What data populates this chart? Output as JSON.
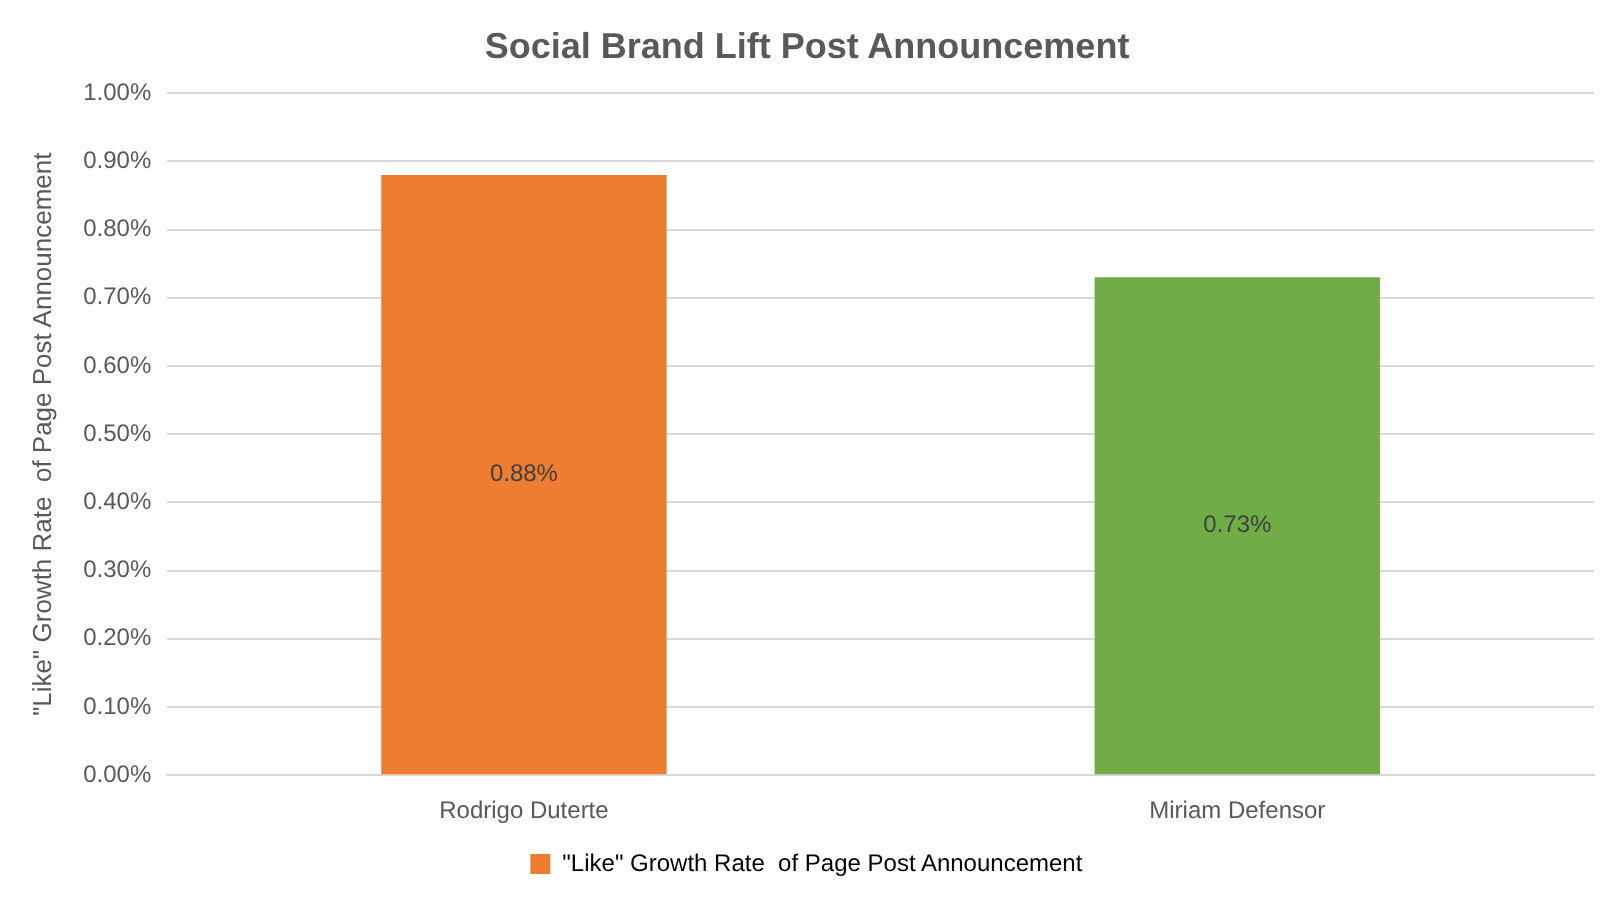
{
  "chart_data": {
    "type": "bar",
    "title": "Social Brand Lift Post Announcement",
    "ylabel": "\"Like\" Growth Rate  of Page Post Announcement",
    "categories": [
      "Rodrigo Duterte",
      "Miriam Defensor"
    ],
    "series": [
      {
        "name": "\"Like\" Growth Rate  of Page Post Announcement",
        "color": "#ed7d31",
        "colors": [
          "#ed7d31",
          "#70ad47"
        ],
        "values": [
          0.88,
          0.73
        ],
        "value_labels": [
          "0.88%",
          "0.73%"
        ]
      }
    ],
    "ylim": [
      0,
      1
    ],
    "yticks": [
      {
        "value": 0,
        "label": "0.00%"
      },
      {
        "value": 0.1,
        "label": "0.10%"
      },
      {
        "value": 0.2,
        "label": "0.20%"
      },
      {
        "value": 0.3,
        "label": "0.30%"
      },
      {
        "value": 0.4,
        "label": "0.40%"
      },
      {
        "value": 0.5,
        "label": "0.50%"
      },
      {
        "value": 0.6,
        "label": "0.60%"
      },
      {
        "value": 0.7,
        "label": "0.70%"
      },
      {
        "value": 0.8,
        "label": "0.80%"
      },
      {
        "value": 0.9,
        "label": "0.90%"
      },
      {
        "value": 1,
        "label": "1.00%"
      }
    ],
    "grid": "y",
    "legend": "bottom"
  }
}
